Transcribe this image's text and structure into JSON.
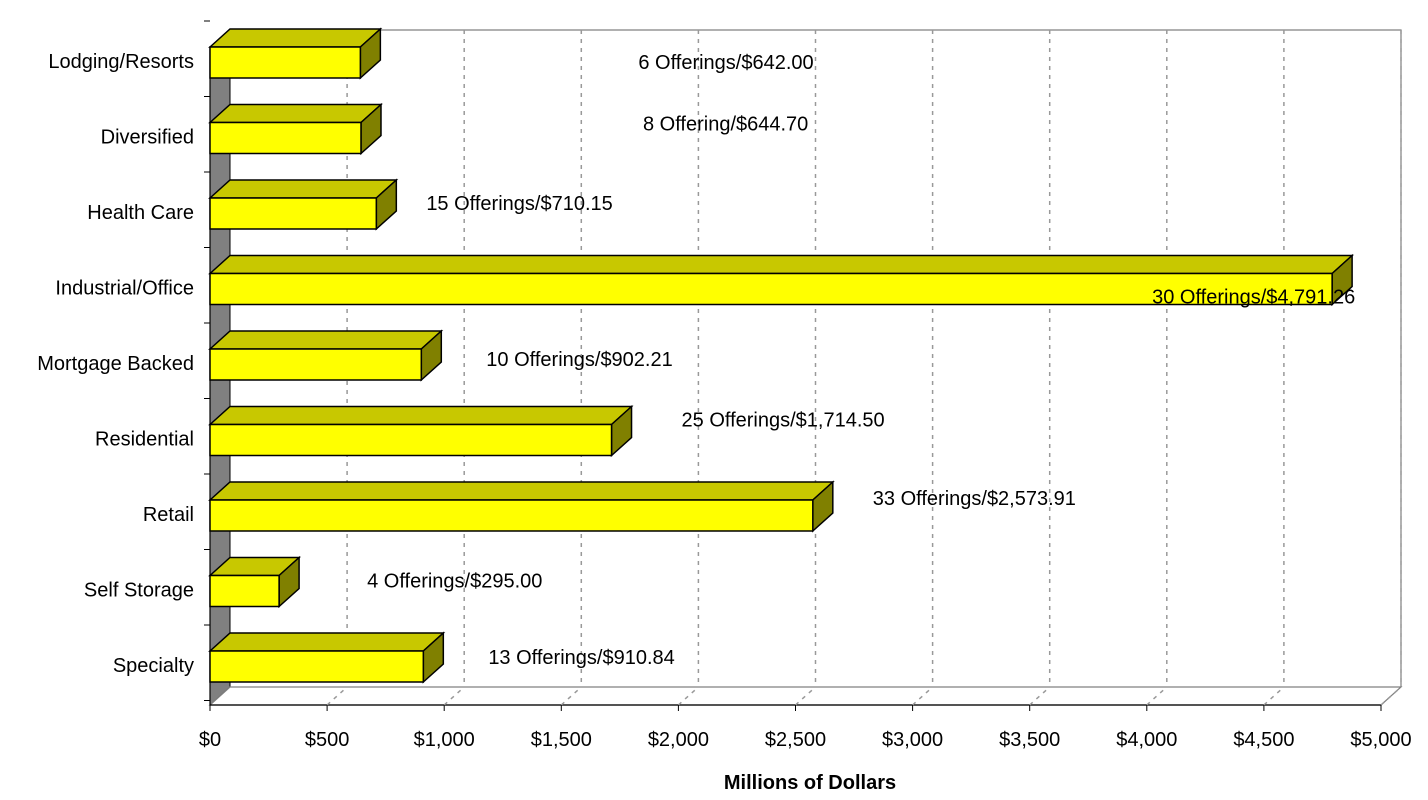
{
  "chart_data": {
    "type": "bar",
    "orientation": "horizontal",
    "style": "3d",
    "categories": [
      "Lodging/Resorts",
      "Diversified",
      "Health Care",
      "Industrial/Office",
      "Mortgage Backed",
      "Residential",
      "Retail",
      "Self Storage",
      "Specialty"
    ],
    "values": [
      642.0,
      644.7,
      710.15,
      4791.26,
      902.21,
      1714.5,
      2573.91,
      295.0,
      910.84
    ],
    "data_labels": [
      "6 Offerings/$642.00",
      "8 Offering/$644.70",
      "15 Offerings/$710.15",
      "30 Offerings/$4,791.26",
      "10 Offerings/$902.21",
      "25 Offerings/$1,714.50",
      "33 Offerings/$2,573.91",
      "4 Offerings/$295.00",
      "13 Offerings/$910.84"
    ],
    "xlabel": "Millions of Dollars",
    "ylabel": "",
    "title": "",
    "xlim": [
      0,
      5000
    ],
    "xticks": [
      0,
      500,
      1000,
      1500,
      2000,
      2500,
      3000,
      3500,
      4000,
      4500,
      5000
    ],
    "xtick_labels": [
      "$0",
      "$500",
      "$1,000",
      "$1,500",
      "$2,000",
      "$2,500",
      "$3,000",
      "$3,500",
      "$4,000",
      "$4,500",
      "$5,000"
    ],
    "grid": "vertical dashed",
    "legend": "none",
    "colors": {
      "bar_front": "#ffff00",
      "bar_top": "#c8c800",
      "bar_side": "#808000",
      "wall": "#808080",
      "grid": "#999999"
    }
  }
}
